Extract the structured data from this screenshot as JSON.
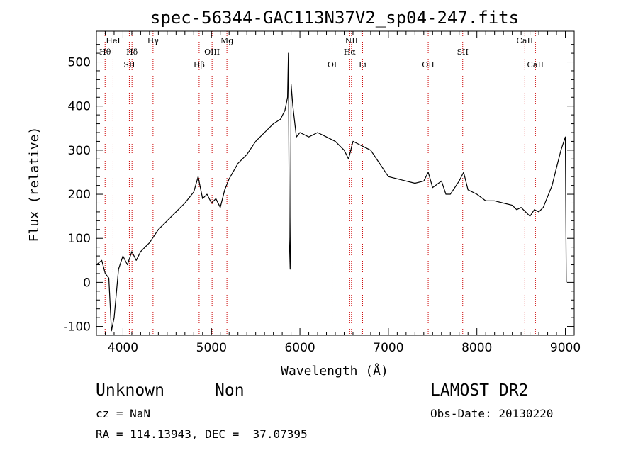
{
  "chart_data": {
    "type": "line",
    "title": "spec-56344-GAC113N37V2_sp04-247.fits",
    "xlabel": "Wavelength (Å)",
    "ylabel": "Flux (relative)",
    "xlim": [
      3700,
      9100
    ],
    "ylim": [
      -120,
      570
    ],
    "xticks": [
      4000,
      5000,
      6000,
      7000,
      8000,
      9000
    ],
    "yticks": [
      -100,
      0,
      100,
      200,
      300,
      400,
      500
    ],
    "line_color": "#000000",
    "marker_color": "#cc0000",
    "series": [
      {
        "x": [
          3700,
          3760,
          3800,
          3840,
          3870,
          3900,
          3950,
          4000,
          4050,
          4100,
          4150,
          4200,
          4300,
          4400,
          4500,
          4600,
          4700,
          4800,
          4850,
          4870,
          4900,
          4950,
          5000,
          5050,
          5100,
          5150,
          5200,
          5300,
          5400,
          5500,
          5600,
          5700,
          5780,
          5830,
          5860,
          5870,
          5880,
          5890,
          5895,
          5900,
          5920,
          5960,
          6000,
          6100,
          6200,
          6300,
          6400,
          6500,
          6550,
          6600,
          6700,
          6800,
          6900,
          7000,
          7100,
          7200,
          7300,
          7400,
          7450,
          7500,
          7600,
          7650,
          7700,
          7800,
          7850,
          7900,
          8000,
          8100,
          8200,
          8300,
          8400,
          8450,
          8500,
          8550,
          8600,
          8650,
          8700,
          8750,
          8800,
          8850,
          8900,
          8950,
          9000,
          9010
        ],
        "y": [
          40,
          50,
          20,
          10,
          -110,
          -80,
          30,
          60,
          40,
          70,
          50,
          70,
          90,
          120,
          140,
          160,
          180,
          205,
          240,
          220,
          190,
          200,
          180,
          190,
          170,
          210,
          235,
          270,
          290,
          320,
          340,
          360,
          370,
          390,
          420,
          520,
          100,
          30,
          150,
          450,
          400,
          330,
          340,
          330,
          340,
          330,
          320,
          300,
          280,
          320,
          310,
          300,
          270,
          240,
          235,
          230,
          225,
          230,
          250,
          215,
          230,
          200,
          200,
          230,
          250,
          210,
          200,
          185,
          185,
          180,
          175,
          165,
          170,
          160,
          150,
          165,
          160,
          170,
          195,
          220,
          260,
          300,
          330,
          0
        ]
      }
    ],
    "line_markers": [
      {
        "label": "HeI",
        "x": 3888,
        "row": 1
      },
      {
        "label": "Hθ",
        "x": 3798,
        "row": 2
      },
      {
        "label": "SII",
        "x": 4072,
        "row": 3
      },
      {
        "label": "Hδ",
        "x": 4102,
        "row": 2
      },
      {
        "label": "Hγ",
        "x": 4340,
        "row": 1
      },
      {
        "label": "Hβ",
        "x": 4861,
        "row": 3
      },
      {
        "label": "OIII",
        "x": 5007,
        "row": 2
      },
      {
        "label": "Mg",
        "x": 5175,
        "row": 1
      },
      {
        "label": "OI",
        "x": 6364,
        "row": 3
      },
      {
        "label": "NII",
        "x": 6583,
        "row": 1
      },
      {
        "label": "Hα",
        "x": 6563,
        "row": 2
      },
      {
        "label": "Li",
        "x": 6708,
        "row": 3
      },
      {
        "label": "OII",
        "x": 7450,
        "row": 3
      },
      {
        "label": "SII",
        "x": 7840,
        "row": 2
      },
      {
        "label": "CaII",
        "x": 8542,
        "row": 1
      },
      {
        "label": "CaII",
        "x": 8662,
        "row": 3
      }
    ]
  },
  "info": {
    "object_class": "Unknown",
    "object_subclass": "Non",
    "cz": "cz = NaN",
    "radec": "RA = 114.13943, DEC =  37.07395",
    "survey": "LAMOST DR2",
    "obs_date": "Obs-Date: 20130220"
  }
}
